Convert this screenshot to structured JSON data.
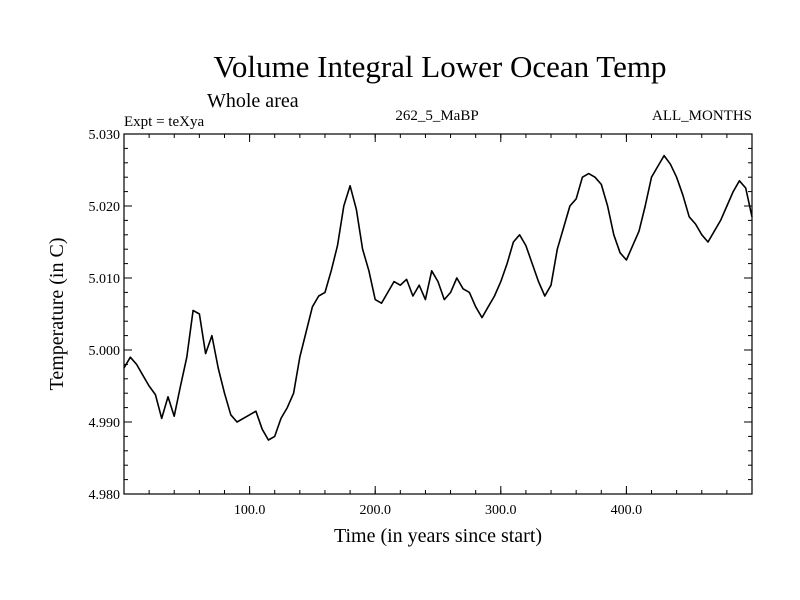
{
  "chart_data": {
    "type": "line",
    "title": "Volume Integral Lower Ocean Temp",
    "subtitle": "Whole area",
    "left_label": "Expt = teXya",
    "center_label": "262_5_MaBP",
    "right_label": "ALL_MONTHS",
    "xlabel": "Time (in years since start)",
    "ylabel": "Temperature (in C)",
    "xlim": [
      0,
      500
    ],
    "ylim": [
      4.98,
      5.03
    ],
    "x_ticks": [
      100,
      200,
      300,
      400
    ],
    "x_tick_labels": [
      "100.0",
      "200.0",
      "300.0",
      "400.0"
    ],
    "y_ticks": [
      4.98,
      4.99,
      5.0,
      5.01,
      5.02,
      5.03
    ],
    "y_tick_labels": [
      "4.980",
      "4.990",
      "5.000",
      "5.010",
      "5.020",
      "5.030"
    ],
    "grid": false,
    "series": [
      {
        "color": "#000000",
        "x": [
          0,
          5,
          10,
          15,
          20,
          25,
          30,
          35,
          40,
          45,
          50,
          55,
          60,
          65,
          70,
          75,
          80,
          85,
          90,
          95,
          100,
          105,
          110,
          115,
          120,
          125,
          130,
          135,
          140,
          145,
          150,
          155,
          160,
          165,
          170,
          175,
          180,
          185,
          190,
          195,
          200,
          205,
          210,
          215,
          220,
          225,
          230,
          235,
          240,
          245,
          250,
          255,
          260,
          265,
          270,
          275,
          280,
          285,
          290,
          295,
          300,
          305,
          310,
          315,
          320,
          325,
          330,
          335,
          340,
          345,
          350,
          355,
          360,
          365,
          370,
          375,
          380,
          385,
          390,
          395,
          400,
          405,
          410,
          415,
          420,
          425,
          430,
          435,
          440,
          445,
          450,
          455,
          460,
          465,
          470,
          475,
          480,
          485,
          490,
          495,
          500
        ],
        "values": [
          4.9975,
          4.999,
          4.998,
          4.9965,
          4.995,
          4.9938,
          4.9905,
          4.9935,
          4.9908,
          4.995,
          4.999,
          5.0055,
          5.005,
          4.9995,
          5.002,
          4.9975,
          4.994,
          4.991,
          4.99,
          4.9905,
          4.991,
          4.9915,
          4.989,
          4.9875,
          4.988,
          4.9905,
          4.992,
          4.994,
          4.999,
          5.0025,
          5.006,
          5.0075,
          5.008,
          5.011,
          5.0145,
          5.02,
          5.0228,
          5.0195,
          5.014,
          5.011,
          5.007,
          5.0065,
          5.008,
          5.0095,
          5.009,
          5.0098,
          5.0075,
          5.009,
          5.007,
          5.011,
          5.0095,
          5.007,
          5.008,
          5.01,
          5.0085,
          5.008,
          5.006,
          5.0045,
          5.006,
          5.0075,
          5.0095,
          5.012,
          5.015,
          5.016,
          5.0145,
          5.012,
          5.0095,
          5.0075,
          5.009,
          5.014,
          5.017,
          5.02,
          5.021,
          5.024,
          5.0245,
          5.024,
          5.023,
          5.02,
          5.016,
          5.0135,
          5.0125,
          5.0145,
          5.0165,
          5.02,
          5.024,
          5.0255,
          5.027,
          5.0258,
          5.024,
          5.0215,
          5.0185,
          5.0175,
          5.016,
          5.015,
          5.0165,
          5.018,
          5.02,
          5.022,
          5.0235,
          5.0225,
          5.0185
        ]
      }
    ]
  }
}
